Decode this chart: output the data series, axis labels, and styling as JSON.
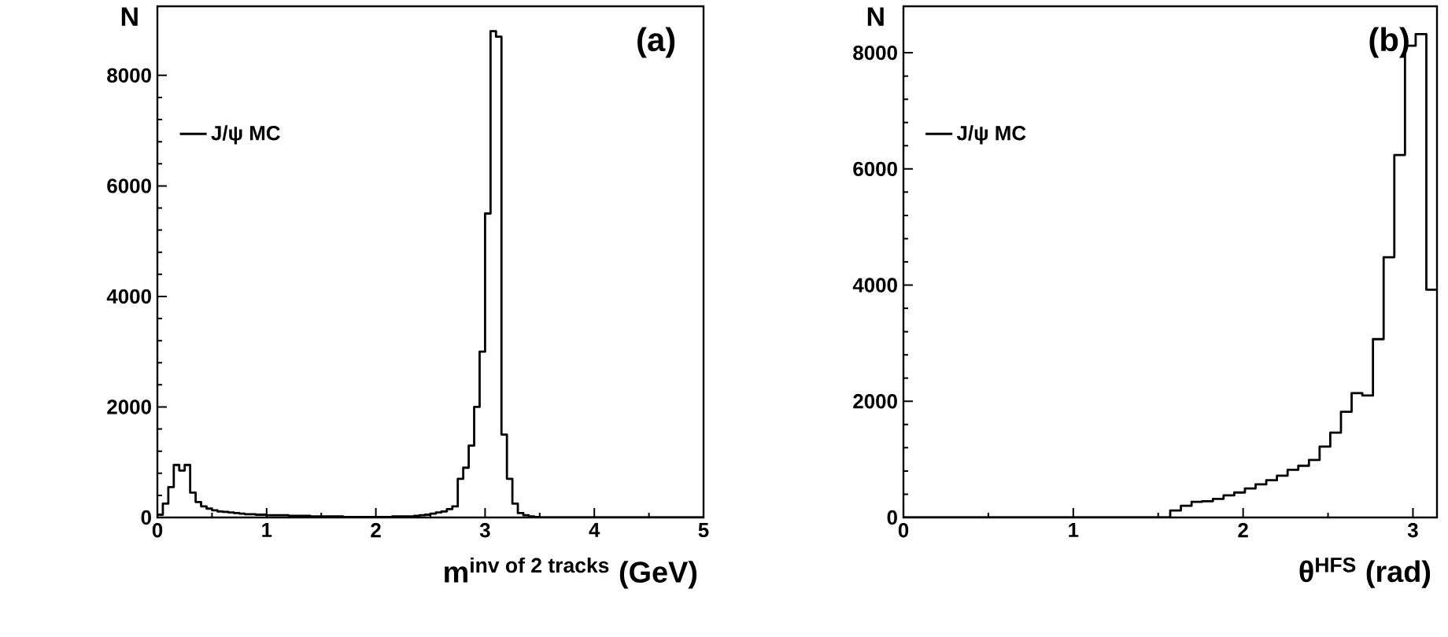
{
  "chart_data": [
    {
      "type": "histogram",
      "xlabel": "\\textbf{m}^{\\textbf{inv of 2 tracks}}\\textbf{ (GeV)}",
      "ylabel": "N",
      "annotations": [
        "(a)"
      ],
      "legend": "top left",
      "bins": [
        0,
        0.05,
        0.1,
        0.15,
        0.2,
        0.25,
        0.3,
        0.35,
        0.4,
        0.45,
        0.5,
        0.55,
        0.6,
        0.65,
        0.7,
        0.75,
        0.8,
        0.85,
        0.9,
        0.95,
        1,
        1.05,
        1.1,
        1.15,
        1.2,
        1.25,
        1.3,
        1.35,
        1.4,
        1.45,
        1.5,
        1.55,
        1.6,
        1.65,
        1.7,
        1.75,
        1.8,
        1.85,
        1.9,
        1.95,
        2,
        2.05,
        2.1,
        2.15,
        2.2,
        2.25,
        2.3,
        2.35,
        2.4,
        2.45,
        2.5,
        2.55,
        2.6,
        2.65,
        2.7,
        2.75,
        2.8,
        2.85,
        2.9,
        2.95,
        3,
        3.05,
        3.1,
        3.15,
        3.2,
        3.25,
        3.3,
        3.35,
        3.4,
        3.45,
        3.5,
        3.55,
        3.6,
        3.65,
        3.7,
        3.75,
        3.8,
        3.85,
        3.9,
        3.95,
        4,
        4.05,
        4.1,
        4.15,
        4.2,
        4.25,
        4.3,
        4.35,
        4.4,
        4.45,
        4.5,
        4.55,
        4.6,
        4.65,
        4.7,
        4.75,
        4.8,
        4.85,
        4.9,
        4.95,
        5
      ],
      "series": [
        {
          "name": "J/ψ MC",
          "color": "#000000",
          "values": [
            50,
            250,
            550,
            950,
            850,
            950,
            450,
            280,
            200,
            160,
            130,
            110,
            100,
            90,
            80,
            70,
            60,
            60,
            50,
            50,
            40,
            40,
            40,
            40,
            30,
            30,
            30,
            30,
            20,
            20,
            20,
            20,
            20,
            20,
            10,
            10,
            10,
            10,
            10,
            10,
            10,
            10,
            10,
            20,
            20,
            20,
            20,
            30,
            40,
            50,
            70,
            90,
            110,
            150,
            200,
            700,
            900,
            1300,
            2000,
            3000,
            5500,
            8800,
            8700,
            1500,
            700,
            250,
            80,
            40,
            20,
            10,
            0,
            0,
            0,
            0,
            0,
            0,
            0,
            0,
            0,
            0,
            0,
            0,
            0,
            0,
            0,
            0,
            0,
            0,
            0,
            0,
            0,
            0,
            0,
            0,
            0,
            0,
            0,
            0,
            0,
            0
          ]
        }
      ],
      "xlim": [
        0,
        5
      ],
      "ylim": [
        0,
        9250
      ],
      "xticks": [
        0,
        1,
        2,
        3,
        4,
        5
      ],
      "yticks": [
        0,
        2000,
        4000,
        6000,
        8000
      ]
    },
    {
      "type": "histogram",
      "xlabel": "θ$^{HFS}$ (rad)",
      "ylabel": "N",
      "annotations": [
        "(b)"
      ],
      "legend": "top left",
      "bins": [
        0,
        0.0628,
        0.1257,
        0.1885,
        0.2513,
        0.3142,
        0.377,
        0.4398,
        0.5027,
        0.5655,
        0.6283,
        0.6912,
        0.754,
        0.8168,
        0.8796,
        0.9425,
        1.0053,
        1.0681,
        1.131,
        1.1938,
        1.2566,
        1.3195,
        1.3823,
        1.4451,
        1.508,
        1.5708,
        1.6336,
        1.6965,
        1.7593,
        1.8221,
        1.885,
        1.9478,
        2.0106,
        2.0735,
        2.1363,
        2.1991,
        2.2619,
        2.3248,
        2.3876,
        2.4504,
        2.5133,
        2.5761,
        2.6389,
        2.7018,
        2.7646,
        2.8274,
        2.8903,
        2.9531,
        3.0159,
        3.0788,
        3.1416
      ],
      "series": [
        {
          "name": "J/ψ MC",
          "color": "#000000",
          "values": [
            0,
            0,
            0,
            0,
            0,
            0,
            0,
            0,
            0,
            0,
            0,
            0,
            0,
            0,
            0,
            0,
            0,
            0,
            0,
            0,
            0,
            0,
            0,
            0,
            0,
            120,
            200,
            270,
            280,
            320,
            380,
            430,
            500,
            570,
            640,
            720,
            820,
            890,
            990,
            1220,
            1460,
            1820,
            2140,
            2100,
            3070,
            4480,
            6240,
            8120,
            8320,
            3920
          ]
        }
      ],
      "xlim": [
        0,
        3.1416
      ],
      "ylim": [
        0,
        8800
      ],
      "xticks": [
        0,
        1,
        2,
        3
      ],
      "yticks": [
        0,
        2000,
        4000,
        6000,
        8000
      ]
    }
  ]
}
